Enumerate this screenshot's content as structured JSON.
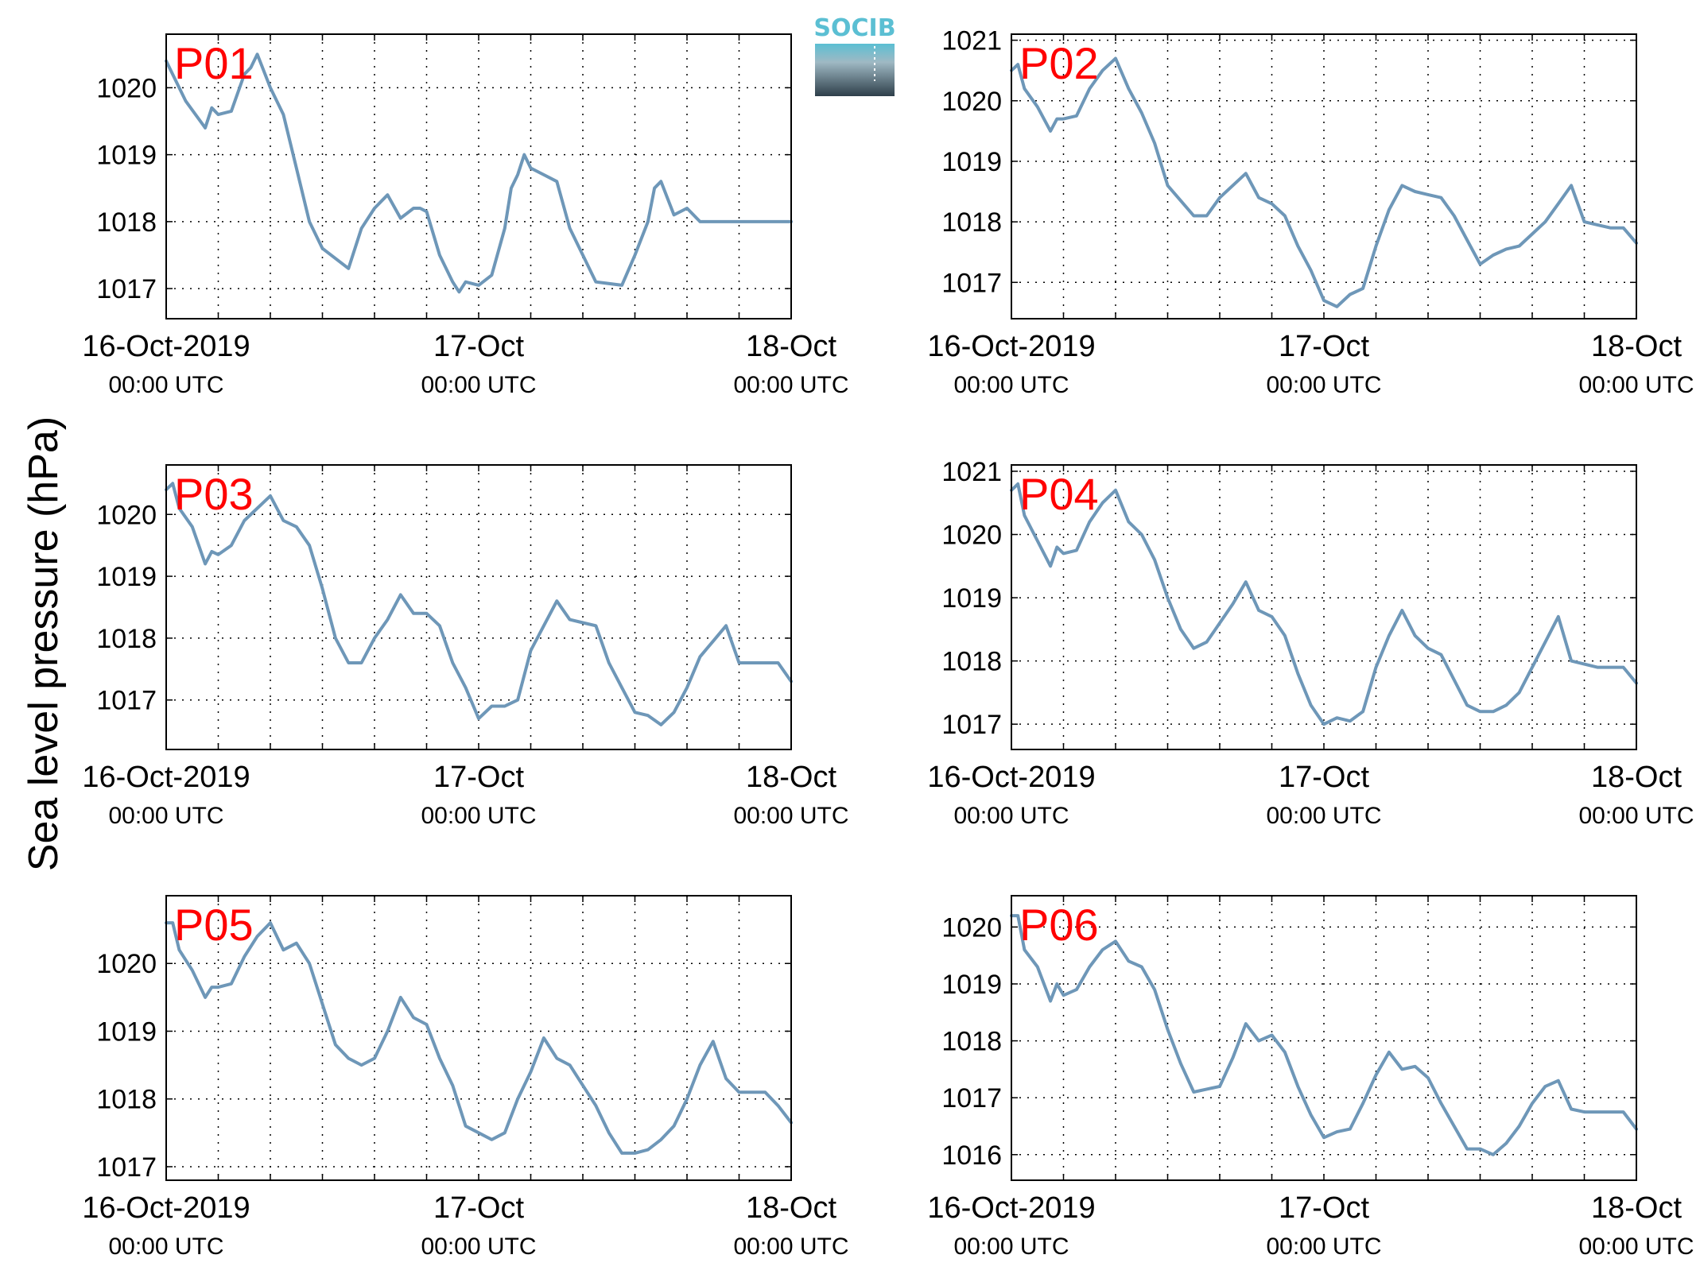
{
  "figure": {
    "ylabel": "Sea level pressure (hPa)",
    "logo_text": "SOCIB",
    "colors": {
      "line": "#6e97b8",
      "panel_label": "#ff0000",
      "grid": "#000000",
      "logo_top": "#5bbfd3",
      "logo_bottom": "#2e3f4a"
    }
  },
  "chart_data": [
    {
      "type": "line",
      "label": "P01",
      "xlim": [
        0,
        48
      ],
      "ylim": [
        1016.55,
        1020.8
      ],
      "yticks": [
        1017,
        1018,
        1019,
        1020
      ],
      "xticks": [
        0,
        4,
        8,
        12,
        16,
        20,
        24,
        28,
        32,
        36,
        40,
        44,
        48
      ],
      "xtick_labels": [
        {
          "x": 0,
          "date": "16-Oct-2019",
          "time": "00:00 UTC"
        },
        {
          "x": 24,
          "date": "17-Oct",
          "time": "00:00 UTC"
        },
        {
          "x": 48,
          "date": "18-Oct",
          "time": "00:00 UTC"
        }
      ],
      "series": [
        {
          "x_hours": [
            0,
            1.5,
            3,
            3.5,
            4,
            5,
            6,
            6.5,
            7,
            8,
            9,
            10,
            11,
            12,
            14,
            15,
            16,
            17,
            18,
            19,
            19.5,
            20,
            21,
            22,
            22.5,
            23,
            24,
            25,
            26,
            26.5,
            27,
            27.5,
            28,
            29,
            30,
            31,
            32,
            33,
            35,
            36,
            37,
            37.5,
            38,
            39,
            40,
            41,
            42,
            42.5,
            43,
            44,
            45,
            46,
            47,
            48
          ],
          "values": [
            1020.4,
            1019.8,
            1019.4,
            1019.7,
            1019.6,
            1019.65,
            1020.2,
            1020.3,
            1020.5,
            1020.0,
            1019.6,
            1018.8,
            1018.0,
            1017.6,
            1017.3,
            1017.9,
            1018.2,
            1018.4,
            1018.05,
            1018.2,
            1018.2,
            1018.15,
            1017.5,
            1017.1,
            1016.95,
            1017.1,
            1017.05,
            1017.2,
            1017.9,
            1018.5,
            1018.7,
            1019.0,
            1018.8,
            1018.7,
            1018.6,
            1017.9,
            1017.5,
            1017.1,
            1017.05,
            1017.5,
            1018.0,
            1018.5,
            1018.6,
            1018.1,
            1018.2,
            1018.0,
            1018.0,
            1018.0,
            1018.0,
            1018.0,
            1018.0,
            1018.0,
            1018.0,
            1018.0
          ]
        }
      ]
    },
    {
      "type": "line",
      "label": "P02",
      "xlim": [
        0,
        48
      ],
      "ylim": [
        1016.4,
        1021.1
      ],
      "yticks": [
        1017,
        1018,
        1019,
        1020,
        1021
      ],
      "xticks": [
        0,
        4,
        8,
        12,
        16,
        20,
        24,
        28,
        32,
        36,
        40,
        44,
        48
      ],
      "xtick_labels": [
        {
          "x": 0,
          "date": "16-Oct-2019",
          "time": "00:00 UTC"
        },
        {
          "x": 24,
          "date": "17-Oct",
          "time": "00:00 UTC"
        },
        {
          "x": 48,
          "date": "18-Oct",
          "time": "00:00 UTC"
        }
      ],
      "series": [
        {
          "x_hours": [
            0,
            0.5,
            1,
            2,
            3,
            3.5,
            4,
            5,
            6,
            7,
            8,
            9,
            10,
            11,
            12,
            14,
            15,
            16,
            17,
            18,
            19,
            20,
            21,
            22,
            23,
            24,
            25,
            26,
            27,
            28,
            29,
            30,
            31,
            32,
            33,
            34,
            35,
            36,
            37,
            38,
            39,
            40,
            41,
            42,
            43,
            44,
            45,
            46,
            47,
            48
          ],
          "values": [
            1020.5,
            1020.6,
            1020.2,
            1019.9,
            1019.5,
            1019.7,
            1019.7,
            1019.75,
            1020.2,
            1020.5,
            1020.7,
            1020.2,
            1019.8,
            1019.3,
            1018.6,
            1018.1,
            1018.1,
            1018.4,
            1018.6,
            1018.8,
            1018.4,
            1018.3,
            1018.1,
            1017.6,
            1017.2,
            1016.7,
            1016.6,
            1016.8,
            1016.9,
            1017.6,
            1018.2,
            1018.6,
            1018.5,
            1018.45,
            1018.4,
            1018.1,
            1017.7,
            1017.3,
            1017.45,
            1017.55,
            1017.6,
            1017.8,
            1018.0,
            1018.3,
            1018.6,
            1018.0,
            1017.95,
            1017.9,
            1017.9,
            1017.65
          ]
        }
      ]
    },
    {
      "type": "line",
      "label": "P03",
      "xlim": [
        0,
        48
      ],
      "ylim": [
        1016.2,
        1020.8
      ],
      "yticks": [
        1017,
        1018,
        1019,
        1020
      ],
      "xticks": [
        0,
        4,
        8,
        12,
        16,
        20,
        24,
        28,
        32,
        36,
        40,
        44,
        48
      ],
      "xtick_labels": [
        {
          "x": 0,
          "date": "16-Oct-2019",
          "time": "00:00 UTC"
        },
        {
          "x": 24,
          "date": "17-Oct",
          "time": "00:00 UTC"
        },
        {
          "x": 48,
          "date": "18-Oct",
          "time": "00:00 UTC"
        }
      ],
      "series": [
        {
          "x_hours": [
            0,
            0.5,
            1,
            2,
            3,
            3.5,
            4,
            5,
            6,
            7,
            8,
            9,
            10,
            11,
            12,
            13,
            14,
            15,
            16,
            17,
            18,
            19,
            20,
            21,
            22,
            23,
            24,
            25,
            26,
            27,
            28,
            29,
            30,
            31,
            32,
            33,
            34,
            35,
            36,
            37,
            38,
            39,
            40,
            41,
            42,
            43,
            44,
            45,
            46,
            47,
            48
          ],
          "values": [
            1020.4,
            1020.5,
            1020.1,
            1019.8,
            1019.2,
            1019.4,
            1019.35,
            1019.5,
            1019.9,
            1020.1,
            1020.3,
            1019.9,
            1019.8,
            1019.5,
            1018.8,
            1018.0,
            1017.6,
            1017.6,
            1018.0,
            1018.3,
            1018.7,
            1018.4,
            1018.4,
            1018.2,
            1017.6,
            1017.2,
            1016.7,
            1016.9,
            1016.9,
            1017.0,
            1017.8,
            1018.2,
            1018.6,
            1018.3,
            1018.25,
            1018.2,
            1017.6,
            1017.2,
            1016.8,
            1016.75,
            1016.6,
            1016.8,
            1017.2,
            1017.7,
            1017.95,
            1018.2,
            1017.6,
            1017.6,
            1017.6,
            1017.6,
            1017.3
          ]
        }
      ]
    },
    {
      "type": "line",
      "label": "P04",
      "xlim": [
        0,
        48
      ],
      "ylim": [
        1016.6,
        1021.1
      ],
      "yticks": [
        1017,
        1018,
        1019,
        1020,
        1021
      ],
      "xticks": [
        0,
        4,
        8,
        12,
        16,
        20,
        24,
        28,
        32,
        36,
        40,
        44,
        48
      ],
      "xtick_labels": [
        {
          "x": 0,
          "date": "16-Oct-2019",
          "time": "00:00 UTC"
        },
        {
          "x": 24,
          "date": "17-Oct",
          "time": "00:00 UTC"
        },
        {
          "x": 48,
          "date": "18-Oct",
          "time": "00:00 UTC"
        }
      ],
      "series": [
        {
          "x_hours": [
            0,
            0.5,
            1,
            2,
            3,
            3.5,
            4,
            5,
            6,
            7,
            8,
            9,
            10,
            11,
            12,
            13,
            14,
            15,
            16,
            17,
            18,
            19,
            20,
            21,
            22,
            23,
            24,
            25,
            26,
            27,
            28,
            29,
            30,
            31,
            32,
            33,
            34,
            35,
            36,
            37,
            38,
            39,
            40,
            41,
            42,
            43,
            44,
            45,
            46,
            47,
            48
          ],
          "values": [
            1020.7,
            1020.8,
            1020.3,
            1019.9,
            1019.5,
            1019.8,
            1019.7,
            1019.75,
            1020.2,
            1020.5,
            1020.7,
            1020.2,
            1020.0,
            1019.6,
            1019.0,
            1018.5,
            1018.2,
            1018.3,
            1018.6,
            1018.9,
            1019.25,
            1018.8,
            1018.7,
            1018.4,
            1017.8,
            1017.3,
            1017.0,
            1017.1,
            1017.05,
            1017.2,
            1017.9,
            1018.4,
            1018.8,
            1018.4,
            1018.2,
            1018.1,
            1017.7,
            1017.3,
            1017.2,
            1017.2,
            1017.3,
            1017.5,
            1017.9,
            1018.3,
            1018.7,
            1018.0,
            1017.95,
            1017.9,
            1017.9,
            1017.9,
            1017.65
          ]
        }
      ]
    },
    {
      "type": "line",
      "label": "P05",
      "xlim": [
        0,
        48
      ],
      "ylim": [
        1016.8,
        1021.0
      ],
      "yticks": [
        1017,
        1018,
        1019,
        1020
      ],
      "xticks": [
        0,
        4,
        8,
        12,
        16,
        20,
        24,
        28,
        32,
        36,
        40,
        44,
        48
      ],
      "xtick_labels": [
        {
          "x": 0,
          "date": "16-Oct-2019",
          "time": "00:00 UTC"
        },
        {
          "x": 24,
          "date": "17-Oct",
          "time": "00:00 UTC"
        },
        {
          "x": 48,
          "date": "18-Oct",
          "time": "00:00 UTC"
        }
      ],
      "series": [
        {
          "x_hours": [
            0,
            0.5,
            1,
            2,
            3,
            3.5,
            4,
            5,
            6,
            7,
            8,
            9,
            10,
            11,
            12,
            13,
            14,
            15,
            16,
            17,
            18,
            19,
            20,
            21,
            22,
            23,
            24,
            25,
            26,
            27,
            28,
            29,
            30,
            31,
            32,
            33,
            34,
            35,
            36,
            37,
            38,
            39,
            40,
            41,
            42,
            43,
            44,
            45,
            46,
            47,
            48
          ],
          "values": [
            1020.6,
            1020.6,
            1020.2,
            1019.9,
            1019.5,
            1019.65,
            1019.65,
            1019.7,
            1020.1,
            1020.4,
            1020.6,
            1020.2,
            1020.3,
            1020.0,
            1019.4,
            1018.8,
            1018.6,
            1018.5,
            1018.6,
            1019.0,
            1019.5,
            1019.2,
            1019.1,
            1018.6,
            1018.2,
            1017.6,
            1017.5,
            1017.4,
            1017.5,
            1018.0,
            1018.4,
            1018.9,
            1018.6,
            1018.5,
            1018.2,
            1017.9,
            1017.5,
            1017.2,
            1017.2,
            1017.25,
            1017.4,
            1017.6,
            1018.0,
            1018.5,
            1018.85,
            1018.3,
            1018.1,
            1018.1,
            1018.1,
            1017.9,
            1017.65
          ]
        }
      ]
    },
    {
      "type": "line",
      "label": "P06",
      "xlim": [
        0,
        48
      ],
      "ylim": [
        1015.55,
        1020.55
      ],
      "yticks": [
        1016,
        1017,
        1018,
        1019,
        1020
      ],
      "xticks": [
        0,
        4,
        8,
        12,
        16,
        20,
        24,
        28,
        32,
        36,
        40,
        44,
        48
      ],
      "xtick_labels": [
        {
          "x": 0,
          "date": "16-Oct-2019",
          "time": "00:00 UTC"
        },
        {
          "x": 24,
          "date": "17-Oct",
          "time": "00:00 UTC"
        },
        {
          "x": 48,
          "date": "18-Oct",
          "time": "00:00 UTC"
        }
      ],
      "series": [
        {
          "x_hours": [
            0,
            0.5,
            1,
            2,
            3,
            3.5,
            4,
            5,
            6,
            7,
            8,
            9,
            10,
            11,
            12,
            13,
            14,
            15,
            16,
            17,
            18,
            19,
            20,
            21,
            22,
            23,
            24,
            25,
            26,
            27,
            28,
            29,
            30,
            31,
            32,
            33,
            34,
            35,
            36,
            37,
            38,
            39,
            40,
            41,
            42,
            43,
            44,
            45,
            46,
            47,
            48
          ],
          "values": [
            1020.2,
            1020.2,
            1019.6,
            1019.3,
            1018.7,
            1019.0,
            1018.8,
            1018.9,
            1019.3,
            1019.6,
            1019.75,
            1019.4,
            1019.3,
            1018.9,
            1018.2,
            1017.6,
            1017.1,
            1017.15,
            1017.2,
            1017.7,
            1018.3,
            1018.0,
            1018.1,
            1017.8,
            1017.2,
            1016.7,
            1016.3,
            1016.4,
            1016.45,
            1016.9,
            1017.4,
            1017.8,
            1017.5,
            1017.55,
            1017.35,
            1016.9,
            1016.5,
            1016.1,
            1016.1,
            1016.0,
            1016.2,
            1016.5,
            1016.9,
            1017.2,
            1017.3,
            1016.8,
            1016.75,
            1016.75,
            1016.75,
            1016.75,
            1016.45
          ]
        }
      ]
    }
  ]
}
